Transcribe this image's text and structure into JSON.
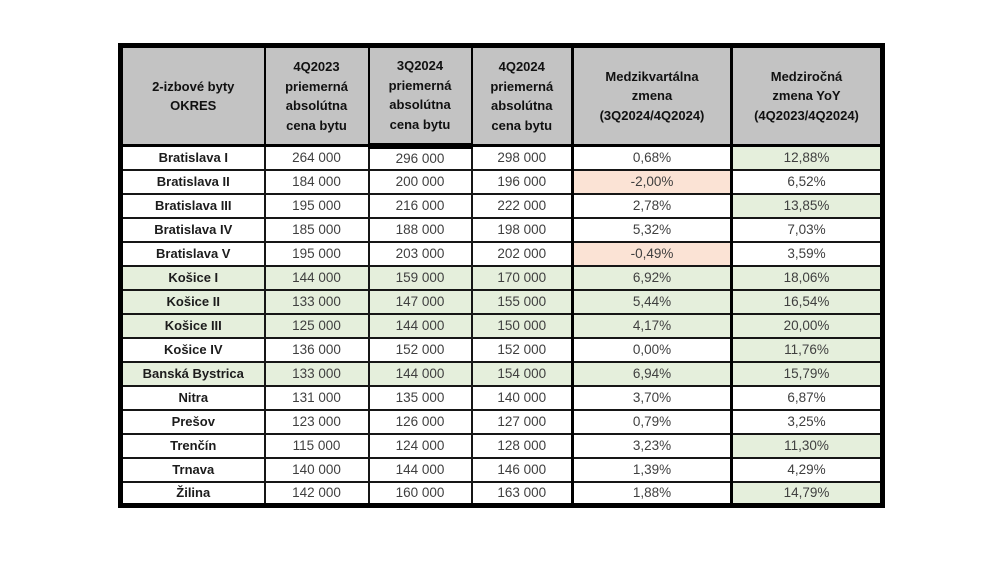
{
  "colors": {
    "header_bg": "#c3c3c3",
    "green": "#e5efdc",
    "red": "#fbe3d5",
    "white": "#ffffff",
    "border": "#000000"
  },
  "chart_data": {
    "type": "table",
    "columns": [
      {
        "key": "okres",
        "label": "2-izbové byty\nOKRES"
      },
      {
        "key": "q4_2023",
        "label": "4Q2023\npriemerná\nabsolútna\ncena bytu"
      },
      {
        "key": "q3_2024",
        "label": "3Q2024\npriemerná\nabsolútna\ncena bytu"
      },
      {
        "key": "q4_2024",
        "label": "4Q2024\npriemerná\nabsolútna\ncena bytu"
      },
      {
        "key": "qoq",
        "label": "Medzikvartálna\nzmena\n(3Q2024/4Q2024)"
      },
      {
        "key": "yoy",
        "label": "Medziročná\nzmena YoY\n(4Q2023/4Q2024)"
      }
    ],
    "rows": [
      {
        "okres": "Bratislava I",
        "q4_2023": "264 000",
        "q3_2024": "296 000",
        "q4_2024": "298 000",
        "qoq": "0,68%",
        "yoy": "12,88%",
        "row_bg": "white",
        "qoq_bg": "white",
        "yoy_bg": "green"
      },
      {
        "okres": "Bratislava II",
        "q4_2023": "184 000",
        "q3_2024": "200 000",
        "q4_2024": "196 000",
        "qoq": "-2,00%",
        "yoy": "6,52%",
        "row_bg": "white",
        "qoq_bg": "red",
        "yoy_bg": "white"
      },
      {
        "okres": "Bratislava III",
        "q4_2023": "195 000",
        "q3_2024": "216 000",
        "q4_2024": "222 000",
        "qoq": "2,78%",
        "yoy": "13,85%",
        "row_bg": "white",
        "qoq_bg": "white",
        "yoy_bg": "green"
      },
      {
        "okres": "Bratislava IV",
        "q4_2023": "185 000",
        "q3_2024": "188 000",
        "q4_2024": "198 000",
        "qoq": "5,32%",
        "yoy": "7,03%",
        "row_bg": "white",
        "qoq_bg": "white",
        "yoy_bg": "white"
      },
      {
        "okres": "Bratislava V",
        "q4_2023": "195 000",
        "q3_2024": "203 000",
        "q4_2024": "202 000",
        "qoq": "-0,49%",
        "yoy": "3,59%",
        "row_bg": "white",
        "qoq_bg": "red",
        "yoy_bg": "white"
      },
      {
        "okres": "Košice I",
        "q4_2023": "144 000",
        "q3_2024": "159 000",
        "q4_2024": "170 000",
        "qoq": "6,92%",
        "yoy": "18,06%",
        "row_bg": "green",
        "qoq_bg": "green",
        "yoy_bg": "green"
      },
      {
        "okres": "Košice II",
        "q4_2023": "133 000",
        "q3_2024": "147 000",
        "q4_2024": "155 000",
        "qoq": "5,44%",
        "yoy": "16,54%",
        "row_bg": "green",
        "qoq_bg": "green",
        "yoy_bg": "green"
      },
      {
        "okres": "Košice III",
        "q4_2023": "125 000",
        "q3_2024": "144 000",
        "q4_2024": "150 000",
        "qoq": "4,17%",
        "yoy": "20,00%",
        "row_bg": "green",
        "qoq_bg": "green",
        "yoy_bg": "green"
      },
      {
        "okres": "Košice IV",
        "q4_2023": "136 000",
        "q3_2024": "152 000",
        "q4_2024": "152 000",
        "qoq": "0,00%",
        "yoy": "11,76%",
        "row_bg": "white",
        "qoq_bg": "white",
        "yoy_bg": "green"
      },
      {
        "okres": "Banská Bystrica",
        "q4_2023": "133 000",
        "q3_2024": "144 000",
        "q4_2024": "154 000",
        "qoq": "6,94%",
        "yoy": "15,79%",
        "row_bg": "green",
        "qoq_bg": "green",
        "yoy_bg": "green"
      },
      {
        "okres": "Nitra",
        "q4_2023": "131 000",
        "q3_2024": "135 000",
        "q4_2024": "140 000",
        "qoq": "3,70%",
        "yoy": "6,87%",
        "row_bg": "white",
        "qoq_bg": "white",
        "yoy_bg": "white"
      },
      {
        "okres": "Prešov",
        "q4_2023": "123 000",
        "q3_2024": "126 000",
        "q4_2024": "127 000",
        "qoq": "0,79%",
        "yoy": "3,25%",
        "row_bg": "white",
        "qoq_bg": "white",
        "yoy_bg": "white"
      },
      {
        "okres": "Trenčín",
        "q4_2023": "115 000",
        "q3_2024": "124 000",
        "q4_2024": "128 000",
        "qoq": "3,23%",
        "yoy": "11,30%",
        "row_bg": "white",
        "qoq_bg": "white",
        "yoy_bg": "green"
      },
      {
        "okres": "Trnava",
        "q4_2023": "140 000",
        "q3_2024": "144 000",
        "q4_2024": "146 000",
        "qoq": "1,39%",
        "yoy": "4,29%",
        "row_bg": "white",
        "qoq_bg": "white",
        "yoy_bg": "white"
      },
      {
        "okres": "Žilina",
        "q4_2023": "142 000",
        "q3_2024": "160 000",
        "q4_2024": "163 000",
        "qoq": "1,88%",
        "yoy": "14,79%",
        "row_bg": "white",
        "qoq_bg": "white",
        "yoy_bg": "green"
      }
    ]
  }
}
